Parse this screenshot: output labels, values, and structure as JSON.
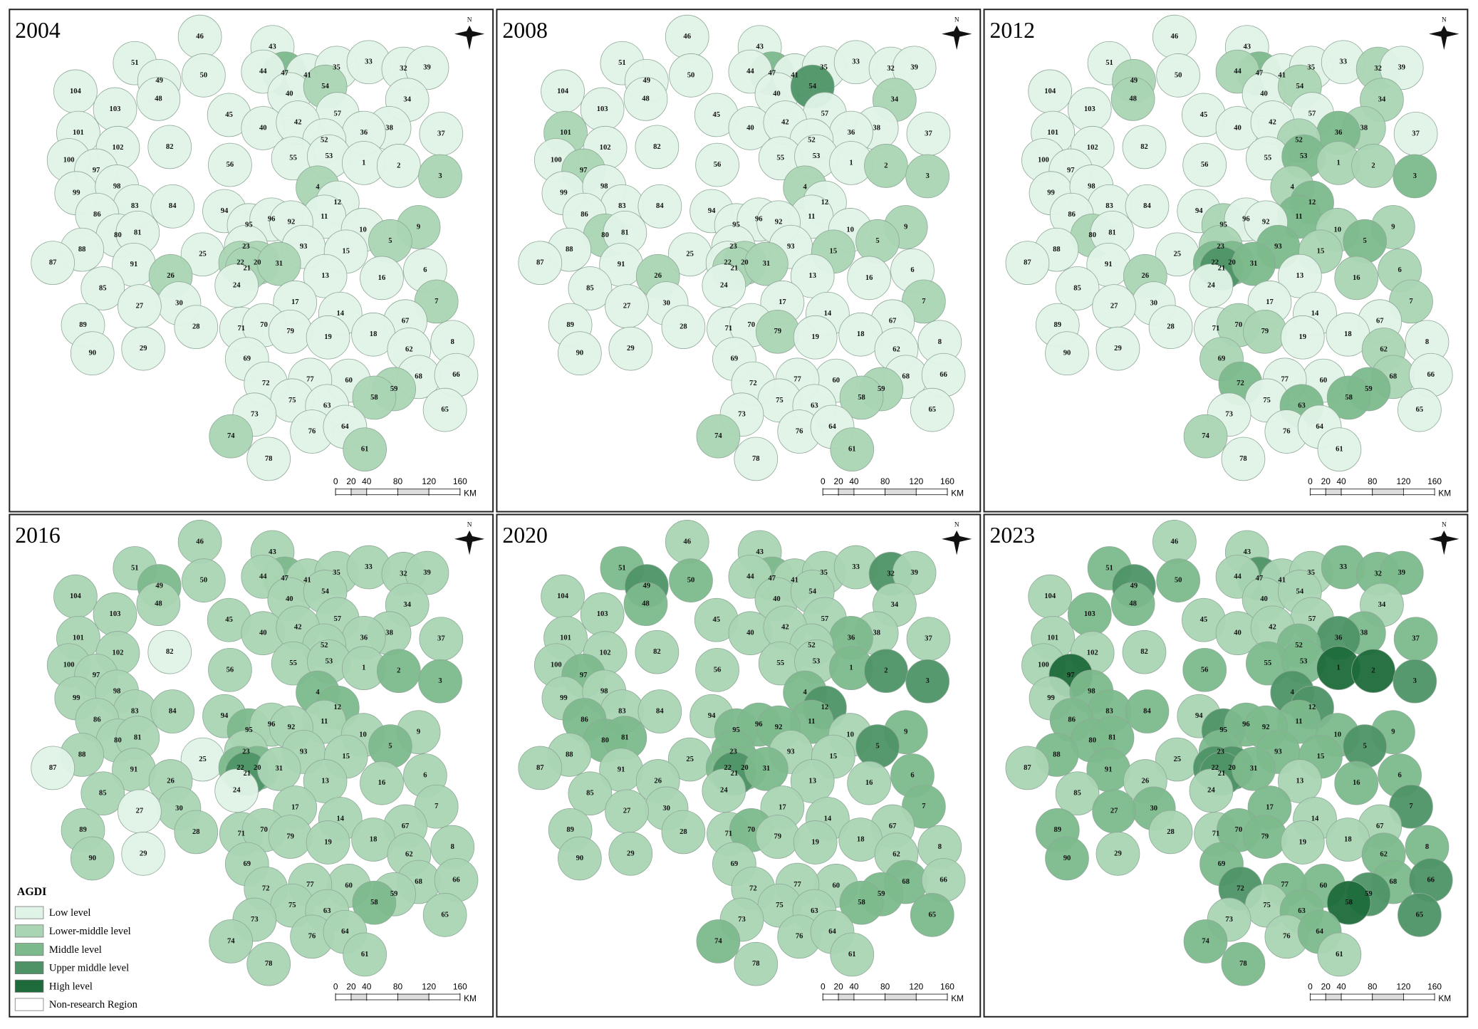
{
  "north": "N",
  "scale_bar": {
    "ticks": [
      0,
      20,
      40,
      80,
      120,
      160
    ],
    "unit": "KM"
  },
  "legend": {
    "title": "AGDI",
    "items": [
      {
        "label": "Low level",
        "color": "#e0f3e7"
      },
      {
        "label": "Lower-middle level",
        "color": "#aad5b4"
      },
      {
        "label": "Middle level",
        "color": "#7cb98c"
      },
      {
        "label": "Upper middle level",
        "color": "#4e9366"
      },
      {
        "label": "High level",
        "color": "#1e6a3a"
      }
    ],
    "non_research": {
      "label": "Non-research Region",
      "color": "#ffffff"
    }
  },
  "regions": [
    "46",
    "43",
    "47",
    "44",
    "41",
    "35",
    "33",
    "32",
    "39",
    "51",
    "49",
    "50",
    "48",
    "104",
    "103",
    "45",
    "40",
    "54",
    "34",
    "57",
    "40",
    "42",
    "38",
    "36",
    "37",
    "101",
    "102",
    "82",
    "52",
    "100",
    "97",
    "55",
    "53",
    "1",
    "2",
    "3",
    "56",
    "99",
    "98",
    "4",
    "83",
    "84",
    "12",
    "86",
    "94",
    "11",
    "9",
    "95",
    "96",
    "92",
    "80",
    "81",
    "10",
    "23",
    "93",
    "88",
    "25",
    "15",
    "5",
    "87",
    "91",
    "22",
    "20",
    "21",
    "31",
    "6",
    "26",
    "13",
    "16",
    "24",
    "85",
    "30",
    "17",
    "7",
    "27",
    "14",
    "28",
    "89",
    "71",
    "70",
    "79",
    "67",
    "19",
    "18",
    "90",
    "29",
    "8",
    "62",
    "69",
    "68",
    "66",
    "60",
    "77",
    "72",
    "59",
    "58",
    "75",
    "63",
    "65",
    "73",
    "76",
    "64",
    "74",
    "61",
    "78"
  ],
  "panels": [
    {
      "year": "2004",
      "levels": [
        0,
        0,
        2,
        0,
        0,
        0,
        0,
        0,
        0,
        0,
        0,
        0,
        0,
        0,
        0,
        0,
        0,
        1,
        0,
        0,
        0,
        0,
        0,
        0,
        0,
        0,
        0,
        0,
        0,
        0,
        0,
        0,
        0,
        0,
        0,
        1,
        0,
        0,
        0,
        1,
        0,
        0,
        0,
        0,
        0,
        0,
        1,
        0,
        0,
        0,
        0,
        0,
        0,
        0,
        0,
        0,
        0,
        0,
        1,
        0,
        0,
        1,
        1,
        1,
        1,
        0,
        1,
        0,
        0,
        0,
        0,
        0,
        0,
        1,
        0,
        0,
        0,
        0,
        0,
        0,
        0,
        0,
        0,
        0,
        0,
        0,
        0,
        0,
        0,
        0,
        0,
        0,
        0,
        0,
        1,
        1,
        0,
        0,
        0,
        0,
        0,
        0,
        1,
        1,
        0
      ]
    },
    {
      "year": "2008",
      "levels": [
        0,
        0,
        2,
        0,
        0,
        0,
        0,
        0,
        0,
        0,
        0,
        0,
        0,
        0,
        0,
        0,
        0,
        3,
        1,
        0,
        0,
        0,
        0,
        0,
        0,
        1,
        0,
        0,
        0,
        0,
        1,
        0,
        0,
        0,
        1,
        1,
        0,
        0,
        0,
        1,
        0,
        0,
        0,
        0,
        0,
        0,
        1,
        0,
        0,
        0,
        1,
        0,
        0,
        0,
        0,
        0,
        0,
        1,
        1,
        0,
        0,
        0,
        1,
        1,
        1,
        0,
        1,
        0,
        0,
        0,
        0,
        0,
        0,
        1,
        0,
        0,
        0,
        0,
        0,
        0,
        1,
        0,
        0,
        0,
        0,
        0,
        0,
        0,
        0,
        0,
        0,
        0,
        0,
        0,
        1,
        1,
        0,
        0,
        0,
        0,
        0,
        0,
        1,
        1,
        0
      ]
    },
    {
      "year": "2012",
      "levels": [
        0,
        0,
        2,
        1,
        0,
        0,
        0,
        1,
        0,
        0,
        1,
        0,
        1,
        0,
        0,
        0,
        0,
        1,
        1,
        0,
        0,
        0,
        1,
        2,
        0,
        0,
        0,
        0,
        1,
        0,
        0,
        0,
        2,
        1,
        1,
        2,
        0,
        0,
        0,
        1,
        0,
        0,
        2,
        0,
        0,
        2,
        1,
        1,
        0,
        0,
        1,
        0,
        1,
        1,
        2,
        0,
        0,
        1,
        2,
        0,
        0,
        2,
        2,
        3,
        2,
        1,
        1,
        0,
        1,
        0,
        0,
        0,
        0,
        1,
        0,
        0,
        0,
        0,
        0,
        1,
        1,
        0,
        0,
        0,
        0,
        0,
        0,
        1,
        1,
        1,
        0,
        0,
        0,
        2,
        2,
        2,
        0,
        2,
        0,
        0,
        0,
        0,
        1,
        0,
        0
      ]
    },
    {
      "year": "2016",
      "levels": [
        1,
        1,
        2,
        1,
        1,
        1,
        1,
        1,
        1,
        1,
        2,
        1,
        1,
        1,
        1,
        1,
        1,
        1,
        1,
        1,
        1,
        1,
        1,
        1,
        1,
        1,
        1,
        0,
        1,
        1,
        1,
        1,
        1,
        1,
        2,
        2,
        1,
        1,
        1,
        2,
        1,
        1,
        2,
        1,
        1,
        1,
        1,
        2,
        1,
        1,
        1,
        1,
        1,
        1,
        1,
        1,
        0,
        1,
        2,
        0,
        1,
        2,
        2,
        3,
        1,
        1,
        1,
        1,
        1,
        0,
        1,
        1,
        1,
        1,
        0,
        1,
        1,
        1,
        1,
        1,
        1,
        1,
        1,
        1,
        1,
        0,
        1,
        1,
        1,
        1,
        1,
        1,
        1,
        1,
        1,
        2,
        1,
        1,
        1,
        1,
        1,
        1,
        1,
        1,
        1
      ]
    },
    {
      "year": "2020",
      "levels": [
        1,
        1,
        2,
        1,
        1,
        1,
        1,
        3,
        1,
        2,
        3,
        2,
        2,
        1,
        1,
        1,
        1,
        1,
        1,
        1,
        1,
        1,
        1,
        2,
        1,
        1,
        1,
        1,
        1,
        1,
        2,
        1,
        1,
        2,
        3,
        3,
        1,
        1,
        1,
        2,
        1,
        1,
        3,
        2,
        1,
        2,
        2,
        2,
        2,
        2,
        2,
        2,
        1,
        2,
        1,
        1,
        1,
        1,
        3,
        1,
        1,
        2,
        2,
        3,
        2,
        2,
        1,
        1,
        1,
        1,
        1,
        1,
        1,
        2,
        1,
        1,
        1,
        1,
        1,
        2,
        1,
        1,
        1,
        1,
        1,
        1,
        1,
        1,
        1,
        2,
        1,
        1,
        1,
        1,
        2,
        2,
        1,
        1,
        2,
        1,
        1,
        1,
        2,
        1,
        1
      ]
    },
    {
      "year": "2023",
      "levels": [
        1,
        1,
        3,
        1,
        1,
        1,
        2,
        2,
        2,
        2,
        3,
        2,
        2,
        1,
        2,
        1,
        1,
        1,
        1,
        1,
        1,
        1,
        2,
        3,
        2,
        1,
        1,
        1,
        2,
        1,
        4,
        2,
        2,
        4,
        4,
        3,
        2,
        1,
        2,
        3,
        2,
        2,
        3,
        2,
        1,
        2,
        2,
        3,
        2,
        2,
        2,
        2,
        2,
        2,
        2,
        2,
        1,
        2,
        3,
        1,
        2,
        3,
        3,
        3,
        2,
        2,
        1,
        1,
        2,
        1,
        1,
        2,
        2,
        3,
        2,
        1,
        1,
        2,
        1,
        2,
        2,
        1,
        1,
        1,
        2,
        1,
        2,
        2,
        2,
        2,
        3,
        2,
        2,
        3,
        3,
        4,
        1,
        2,
        3,
        1,
        1,
        2,
        2,
        1,
        2
      ]
    }
  ]
}
